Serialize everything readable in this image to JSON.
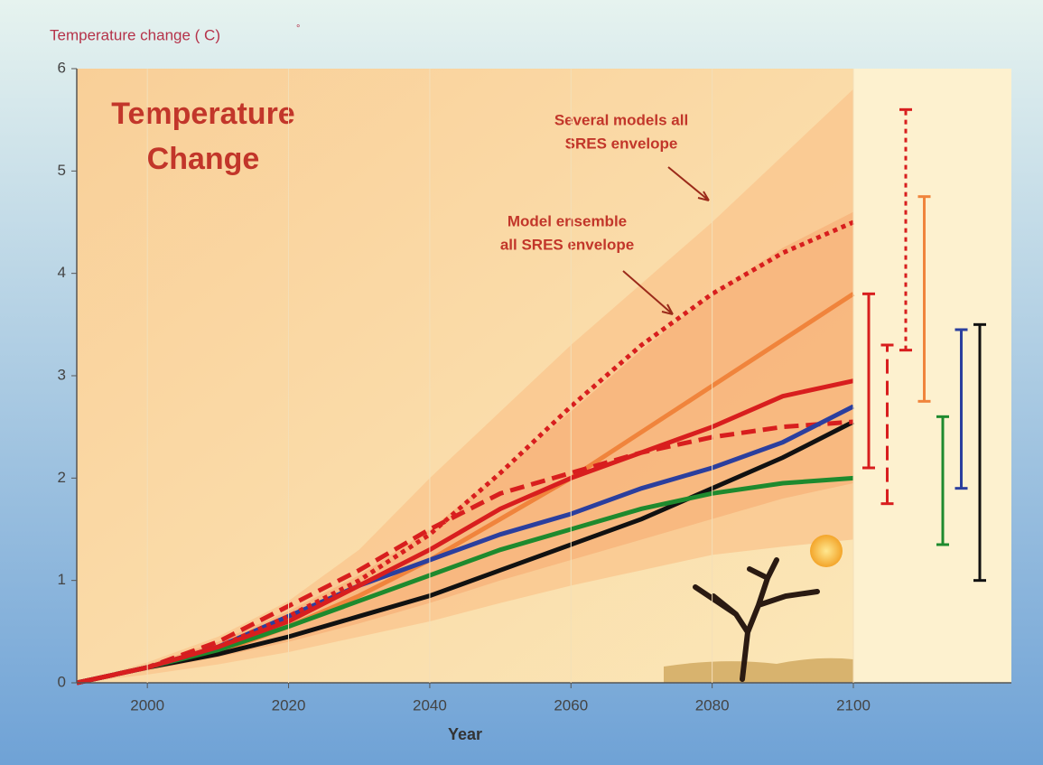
{
  "chart_data": {
    "type": "line",
    "title_lines": [
      "Temperature",
      "Change"
    ],
    "y_label": "Temperature change ( C)",
    "y_label_mark": "°",
    "x_label": "Year",
    "annotations": [
      {
        "lines": [
          "Several models all",
          "SRES envelope"
        ]
      },
      {
        "lines": [
          "Model ensemble",
          "all SRES envelope"
        ]
      }
    ],
    "x": [
      1990,
      2000,
      2010,
      2020,
      2030,
      2040,
      2050,
      2060,
      2070,
      2080,
      2090,
      2100
    ],
    "xlim": [
      1990,
      2100
    ],
    "ylim": [
      0,
      6
    ],
    "xticks": [
      2000,
      2020,
      2040,
      2060,
      2080,
      2100
    ],
    "yticks": [
      0,
      1,
      2,
      3,
      4,
      5,
      6
    ],
    "envelopes": [
      {
        "color": "#f9c890",
        "upper": [
          0,
          0.2,
          0.45,
          0.8,
          1.3,
          2.0,
          2.65,
          3.3,
          3.9,
          4.5,
          5.15,
          5.8
        ],
        "lower": [
          0,
          0.08,
          0.18,
          0.3,
          0.45,
          0.6,
          0.78,
          0.95,
          1.1,
          1.25,
          1.33,
          1.4
        ]
      },
      {
        "color": "#f7b57c",
        "upper": [
          0,
          0.18,
          0.4,
          0.7,
          1.05,
          1.5,
          2.05,
          2.65,
          3.25,
          3.8,
          4.25,
          4.6
        ],
        "lower": [
          0,
          0.12,
          0.25,
          0.4,
          0.58,
          0.78,
          1.0,
          1.2,
          1.4,
          1.6,
          1.8,
          1.95
        ]
      }
    ],
    "series": [
      {
        "color": "#f0843c",
        "dash": "solid",
        "values": [
          0,
          0.15,
          0.3,
          0.55,
          0.85,
          1.2,
          1.6,
          2.0,
          2.45,
          2.9,
          3.35,
          3.8
        ]
      },
      {
        "color": "#111111",
        "dash": "solid",
        "values": [
          0,
          0.15,
          0.28,
          0.45,
          0.65,
          0.85,
          1.1,
          1.35,
          1.6,
          1.9,
          2.2,
          2.55
        ]
      },
      {
        "color": "#1e8a2e",
        "dash": "solid",
        "values": [
          0,
          0.15,
          0.32,
          0.55,
          0.8,
          1.05,
          1.3,
          1.5,
          1.7,
          1.85,
          1.95,
          2.0
        ]
      },
      {
        "color": "#d81e1e",
        "dash": "dashed",
        "values": [
          0,
          0.15,
          0.4,
          0.75,
          1.1,
          1.5,
          1.85,
          2.05,
          2.25,
          2.4,
          2.5,
          2.55
        ]
      },
      {
        "color": "#2b3f9e",
        "dash": "solid",
        "values": [
          0,
          0.15,
          0.35,
          0.65,
          0.95,
          1.2,
          1.45,
          1.65,
          1.9,
          2.1,
          2.35,
          2.7
        ]
      },
      {
        "color": "#d81e1e",
        "dash": "solid",
        "values": [
          0,
          0.15,
          0.35,
          0.6,
          0.95,
          1.3,
          1.7,
          2.0,
          2.25,
          2.5,
          2.8,
          2.95
        ]
      },
      {
        "color": "#d81e1e",
        "dash": "dotted",
        "values": [
          0,
          0.15,
          0.35,
          0.65,
          1.0,
          1.45,
          2.05,
          2.7,
          3.3,
          3.8,
          4.2,
          4.5
        ]
      }
    ],
    "ranges": [
      {
        "color": "#d81e1e",
        "dash": "solid",
        "low": 2.1,
        "high": 3.8
      },
      {
        "color": "#d81e1e",
        "dash": "dashed",
        "low": 1.75,
        "high": 3.3
      },
      {
        "color": "#d81e1e",
        "dash": "dotted",
        "low": 3.25,
        "high": 5.6
      },
      {
        "color": "#f0843c",
        "dash": "solid",
        "low": 2.75,
        "high": 4.75
      },
      {
        "color": "#1e8a2e",
        "dash": "solid",
        "low": 1.35,
        "high": 2.6
      },
      {
        "color": "#2b3f9e",
        "dash": "solid",
        "low": 1.9,
        "high": 3.45
      },
      {
        "color": "#111111",
        "dash": "solid",
        "low": 1.0,
        "high": 3.5
      }
    ]
  }
}
